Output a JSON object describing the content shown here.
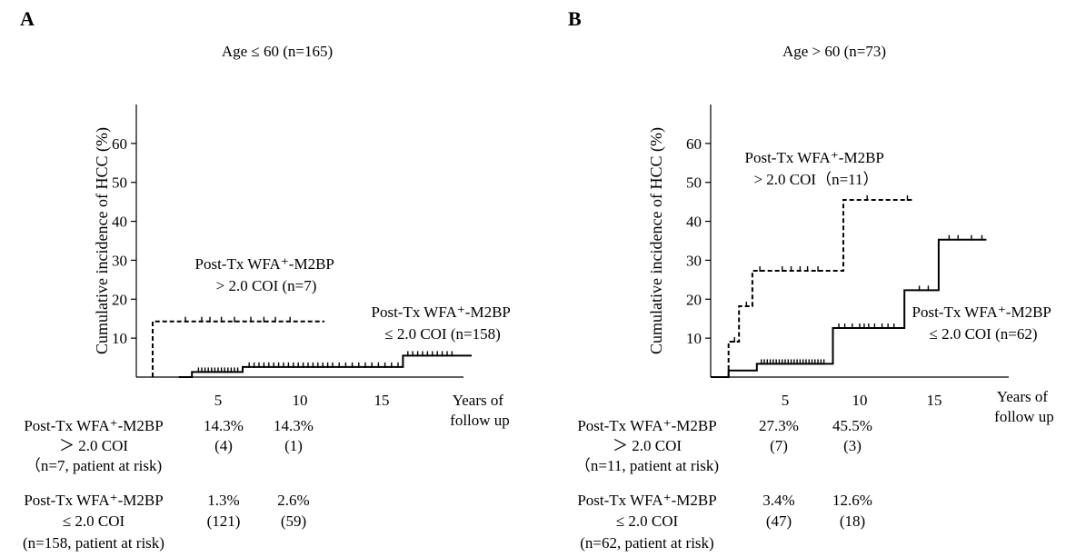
{
  "chart_data": [
    {
      "panel_label": "A",
      "type": "line",
      "title": "Age ≤ 60 (n=165)",
      "ylabel": "Cumulative incidence of HCC (%)",
      "xlabel": "Years of\nfollow up",
      "xlim": [
        0,
        20
      ],
      "ylim": [
        0,
        70
      ],
      "xticks": [
        5,
        10,
        15
      ],
      "yticks": [
        10,
        20,
        30,
        40,
        50,
        60
      ],
      "series": [
        {
          "name": "Post-Tx WFA⁺-M2BP\n> 2.0 COI (n=7)",
          "style": "dashed",
          "steps": [
            [
              1,
              0
            ],
            [
              1,
              14.3
            ],
            [
              11.5,
              14.3
            ]
          ],
          "censor": [
            3,
            4,
            4.5,
            5.2,
            6,
            7,
            7.8,
            8.5,
            9.4
          ]
        },
        {
          "name": "Post-Tx WFA⁺-M2BP\n≤ 2.0 COI (n=158)",
          "style": "solid",
          "steps": [
            [
              2.6,
              0
            ],
            [
              3.4,
              0
            ],
            [
              3.4,
              1.3
            ],
            [
              6.5,
              1.3
            ],
            [
              6.5,
              2.6
            ],
            [
              16.3,
              2.6
            ],
            [
              16.3,
              5.5
            ],
            [
              20.5,
              5.5
            ]
          ],
          "censor": [
            3.8,
            4,
            4.2,
            4.4,
            4.6,
            4.8,
            5,
            5.2,
            5.4,
            5.6,
            5.8,
            6,
            6.2,
            6.9,
            7.2,
            7.5,
            7.8,
            8.1,
            8.4,
            8.7,
            9,
            9.3,
            9.6,
            9.9,
            10.2,
            10.5,
            10.8,
            11.1,
            11.4,
            11.7,
            12,
            12.4,
            12.8,
            13.2,
            13.6,
            14,
            14.4,
            14.8,
            15.2,
            15.6,
            16,
            16.6,
            16.9,
            17.2,
            17.5,
            17.8,
            18.1,
            18.4,
            18.7,
            19,
            19.3
          ]
        }
      ],
      "at_risk_table": [
        {
          "label": [
            "Post-Tx WFA⁺-M2BP",
            "＞ 2.0 COI",
            "（n=7, patient at risk)"
          ],
          "percent": [
            "14.3%",
            "14.3%"
          ],
          "at_risk": [
            "(4)",
            "(1)"
          ]
        },
        {
          "label": [
            "Post-Tx WFA⁺-M2BP",
            "≤  2.0 COI",
            "(n=158, patient at risk)"
          ],
          "percent": [
            "1.3%",
            "2.6%"
          ],
          "at_risk": [
            "(121)",
            "(59)"
          ]
        }
      ]
    },
    {
      "panel_label": "B",
      "type": "line",
      "title": "Age > 60 (n=73)",
      "ylabel": "Cumulative incidence of HCC (%)",
      "xlabel": "Years of\nfollow up",
      "xlim": [
        0,
        20
      ],
      "ylim": [
        0,
        70
      ],
      "xticks": [
        5,
        10,
        15
      ],
      "yticks": [
        10,
        20,
        30,
        40,
        50,
        60
      ],
      "series": [
        {
          "name": "Post-Tx WFA⁺-M2BP\n> 2.0 COI（n=11）",
          "style": "dashed",
          "steps": [
            [
              1.2,
              0
            ],
            [
              1.2,
              9.1
            ],
            [
              1.9,
              9.1
            ],
            [
              1.9,
              18.2
            ],
            [
              2.8,
              18.2
            ],
            [
              2.8,
              27.3
            ],
            [
              8.9,
              27.3
            ],
            [
              8.9,
              45.5
            ],
            [
              13.5,
              45.5
            ]
          ],
          "censor": [
            1.6,
            2.4,
            3.3,
            4.8,
            5.4,
            6,
            6.5,
            7.2,
            10.5,
            13.2
          ]
        },
        {
          "name": "Post-Tx WFA⁺-M2BP\n≤ 2.0 COI (n=62)",
          "style": "solid",
          "steps": [
            [
              0,
              0
            ],
            [
              1.2,
              0
            ],
            [
              1.2,
              1.7
            ],
            [
              3.1,
              1.7
            ],
            [
              3.1,
              3.4
            ],
            [
              8.2,
              3.4
            ],
            [
              8.2,
              12.6
            ],
            [
              13,
              12.6
            ],
            [
              13,
              22.3
            ],
            [
              15.3,
              22.3
            ],
            [
              15.3,
              35.3
            ],
            [
              18.5,
              35.3
            ]
          ],
          "censor": [
            3.4,
            3.6,
            3.8,
            4,
            4.2,
            4.4,
            4.6,
            4.8,
            5,
            5.2,
            5.4,
            5.6,
            5.8,
            6,
            6.2,
            6.4,
            6.6,
            6.8,
            7,
            7.2,
            7.4,
            7.6,
            8.6,
            9,
            9.5,
            10,
            10.3,
            10.6,
            11,
            11.5,
            11.9,
            12.3,
            14,
            14.6,
            16,
            16.6,
            17.5,
            18.2
          ]
        }
      ],
      "at_risk_table": [
        {
          "label": [
            "Post-Tx WFA⁺-M2BP",
            "＞ 2.0 COI",
            "（n=11, patient at risk)"
          ],
          "percent": [
            "27.3%",
            "45.5%"
          ],
          "at_risk": [
            "(7)",
            "(3)"
          ]
        },
        {
          "label": [
            "Post-Tx WFA⁺-M2BP",
            "≤  2.0 COI",
            "(n=62, patient at risk)"
          ],
          "percent": [
            "3.4%",
            "12.6%"
          ],
          "at_risk": [
            "(47)",
            "(18)"
          ]
        }
      ]
    }
  ]
}
